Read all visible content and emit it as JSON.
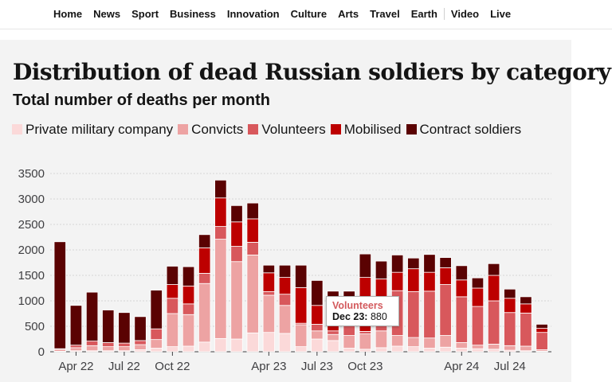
{
  "nav": {
    "items": [
      "Home",
      "News",
      "Sport",
      "Business",
      "Innovation",
      "Culture",
      "Arts",
      "Travel",
      "Earth",
      "Video",
      "Live"
    ]
  },
  "colors": {
    "Private military company": "#fbd9d9",
    "Convicts": "#eda3a3",
    "Volunteers": "#d8585c",
    "Mobilised": "#bd0000",
    "Contract soldiers": "#5a0202"
  },
  "tooltip": {
    "series": "Volunteers",
    "label": "Dec 23:",
    "value": "880"
  },
  "chart_data": {
    "type": "bar",
    "stacked": true,
    "title": "Distribution of dead Russian soldiers by category",
    "subtitle": "Total number of deaths per month",
    "ylim": [
      0,
      3500
    ],
    "yticks": [
      0,
      500,
      1000,
      1500,
      2000,
      2500,
      3000,
      3500
    ],
    "xtick_labels": [
      {
        "index": 1,
        "label": "Apr 22"
      },
      {
        "index": 4,
        "label": "Jul 22"
      },
      {
        "index": 7,
        "label": "Oct 22"
      },
      {
        "index": 13,
        "label": "Apr 23"
      },
      {
        "index": 16,
        "label": "Jul 23"
      },
      {
        "index": 19,
        "label": "Oct 23"
      },
      {
        "index": 25,
        "label": "Apr 24"
      },
      {
        "index": 28,
        "label": "Jul 24"
      }
    ],
    "grid": true,
    "legend_position": "top",
    "categories": [
      "Feb 22",
      "Mar 22",
      "Apr 22",
      "May 22",
      "Jun 22",
      "Jul 22",
      "Aug 22",
      "Sep 22",
      "Oct 22",
      "Nov 22",
      "Dec 22",
      "Jan 23",
      "Feb 23",
      "Mar 23",
      "Apr 23",
      "May 23",
      "Jun 23",
      "Jul 23",
      "Aug 23",
      "Sep 23",
      "Oct 23",
      "Nov 23",
      "Dec 23",
      "Jan 24",
      "Feb 24",
      "Mar 24",
      "Apr 24",
      "May 24",
      "Jun 24",
      "Jul 24",
      "Aug 24"
    ],
    "series": [
      {
        "name": "Private military company",
        "values": [
          10,
          20,
          20,
          20,
          20,
          40,
          70,
          100,
          110,
          190,
          260,
          250,
          370,
          380,
          360,
          100,
          250,
          220,
          70,
          50,
          80,
          110,
          100,
          70,
          90,
          70,
          60,
          50,
          30,
          20,
          10
        ]
      },
      {
        "name": "Convicts",
        "values": [
          40,
          60,
          100,
          80,
          80,
          100,
          170,
          650,
          620,
          1150,
          1950,
          1520,
          1530,
          730,
          550,
          430,
          160,
          120,
          250,
          300,
          330,
          210,
          180,
          200,
          230,
          110,
          70,
          100,
          90,
          90,
          30
        ]
      },
      {
        "name": "Volunteers",
        "values": [
          10,
          50,
          90,
          80,
          70,
          80,
          210,
          300,
          210,
          200,
          250,
          300,
          250,
          70,
          220,
          30,
          130,
          70,
          200,
          50,
          400,
          880,
          900,
          920,
          1000,
          900,
          760,
          850,
          650,
          650,
          340
        ]
      },
      {
        "name": "Mobilised",
        "values": [
          0,
          0,
          0,
          0,
          0,
          0,
          0,
          270,
          350,
          500,
          560,
          480,
          460,
          370,
          330,
          700,
          370,
          360,
          300,
          1060,
          620,
          360,
          450,
          370,
          330,
          330,
          360,
          500,
          280,
          180,
          80
        ]
      },
      {
        "name": "Contract soldiers",
        "values": [
          2100,
          780,
          960,
          640,
          600,
          470,
          760,
          360,
          380,
          260,
          350,
          320,
          310,
          150,
          240,
          440,
          490,
          420,
          370,
          460,
          350,
          340,
          210,
          350,
          200,
          280,
          200,
          230,
          180,
          140,
          80
        ]
      }
    ]
  }
}
